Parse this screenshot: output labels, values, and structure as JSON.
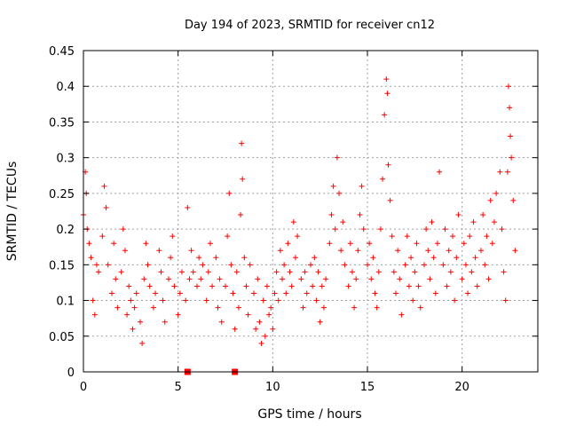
{
  "chart_data": {
    "type": "scatter",
    "title": "Day 194 of 2023, SRMTID for receiver cn12",
    "xlabel": "GPS time / hours",
    "ylabel": "SRMTID / TECUs",
    "xlim": [
      0,
      24
    ],
    "ylim": [
      0,
      0.45
    ],
    "xticks": [
      0,
      5,
      10,
      15,
      20
    ],
    "xtick_labels": [
      "0",
      "5",
      "10",
      "15",
      "20"
    ],
    "yticks": [
      0,
      0.05,
      0.1,
      0.15,
      0.2,
      0.25,
      0.3,
      0.35,
      0.4,
      0.45
    ],
    "ytick_labels": [
      "0",
      "0.05",
      "0.1",
      "0.15",
      "0.2",
      "0.25",
      "0.3",
      "0.35",
      "0.4",
      "0.45"
    ],
    "grid": true,
    "marker": "+",
    "color": "#ff0000",
    "series": [
      {
        "name": "SRMTID",
        "points": [
          [
            0.0,
            0.22
          ],
          [
            0.1,
            0.28
          ],
          [
            0.15,
            0.25
          ],
          [
            0.2,
            0.2
          ],
          [
            0.3,
            0.18
          ],
          [
            0.4,
            0.16
          ],
          [
            0.5,
            0.1
          ],
          [
            0.6,
            0.08
          ],
          [
            0.7,
            0.15
          ],
          [
            0.8,
            0.14
          ],
          [
            1.0,
            0.19
          ],
          [
            1.1,
            0.26
          ],
          [
            1.2,
            0.23
          ],
          [
            1.3,
            0.15
          ],
          [
            1.5,
            0.11
          ],
          [
            1.6,
            0.18
          ],
          [
            1.7,
            0.13
          ],
          [
            1.8,
            0.09
          ],
          [
            2.0,
            0.14
          ],
          [
            2.1,
            0.2
          ],
          [
            2.2,
            0.17
          ],
          [
            2.3,
            0.08
          ],
          [
            2.4,
            0.12
          ],
          [
            2.5,
            0.1
          ],
          [
            2.6,
            0.06
          ],
          [
            2.7,
            0.09
          ],
          [
            2.8,
            0.11
          ],
          [
            3.0,
            0.07
          ],
          [
            3.1,
            0.04
          ],
          [
            3.2,
            0.13
          ],
          [
            3.3,
            0.18
          ],
          [
            3.4,
            0.15
          ],
          [
            3.5,
            0.12
          ],
          [
            3.7,
            0.09
          ],
          [
            3.8,
            0.11
          ],
          [
            4.0,
            0.17
          ],
          [
            4.1,
            0.14
          ],
          [
            4.2,
            0.1
          ],
          [
            4.3,
            0.07
          ],
          [
            4.5,
            0.13
          ],
          [
            4.6,
            0.16
          ],
          [
            4.7,
            0.19
          ],
          [
            4.8,
            0.12
          ],
          [
            5.0,
            0.08
          ],
          [
            5.1,
            0.11
          ],
          [
            5.2,
            0.14
          ],
          [
            5.4,
            0.1
          ],
          [
            5.5,
            0.23
          ],
          [
            5.6,
            0.13
          ],
          [
            5.7,
            0.17
          ],
          [
            5.8,
            0.14
          ],
          [
            6.0,
            0.12
          ],
          [
            6.1,
            0.16
          ],
          [
            6.2,
            0.13
          ],
          [
            6.3,
            0.15
          ],
          [
            6.5,
            0.1
          ],
          [
            6.6,
            0.14
          ],
          [
            6.7,
            0.18
          ],
          [
            6.8,
            0.12
          ],
          [
            7.0,
            0.16
          ],
          [
            7.1,
            0.09
          ],
          [
            7.2,
            0.13
          ],
          [
            7.3,
            0.07
          ],
          [
            7.5,
            0.12
          ],
          [
            7.6,
            0.19
          ],
          [
            7.7,
            0.25
          ],
          [
            7.8,
            0.15
          ],
          [
            7.9,
            0.11
          ],
          [
            8.0,
            0.06
          ],
          [
            8.1,
            0.14
          ],
          [
            8.2,
            0.09
          ],
          [
            8.3,
            0.22
          ],
          [
            8.35,
            0.32
          ],
          [
            8.4,
            0.27
          ],
          [
            8.5,
            0.16
          ],
          [
            8.6,
            0.12
          ],
          [
            8.7,
            0.08
          ],
          [
            8.8,
            0.15
          ],
          [
            9.0,
            0.11
          ],
          [
            9.1,
            0.06
          ],
          [
            9.2,
            0.13
          ],
          [
            9.3,
            0.07
          ],
          [
            9.4,
            0.04
          ],
          [
            9.5,
            0.1
          ],
          [
            9.6,
            0.05
          ],
          [
            9.7,
            0.12
          ],
          [
            9.8,
            0.08
          ],
          [
            9.9,
            0.09
          ],
          [
            10.0,
            0.06
          ],
          [
            10.1,
            0.11
          ],
          [
            10.2,
            0.14
          ],
          [
            10.3,
            0.1
          ],
          [
            10.4,
            0.17
          ],
          [
            10.5,
            0.13
          ],
          [
            10.6,
            0.15
          ],
          [
            10.7,
            0.11
          ],
          [
            10.8,
            0.18
          ],
          [
            10.9,
            0.14
          ],
          [
            11.0,
            0.12
          ],
          [
            11.1,
            0.21
          ],
          [
            11.2,
            0.16
          ],
          [
            11.3,
            0.19
          ],
          [
            11.5,
            0.13
          ],
          [
            11.6,
            0.09
          ],
          [
            11.7,
            0.14
          ],
          [
            11.8,
            0.11
          ],
          [
            12.0,
            0.15
          ],
          [
            12.1,
            0.12
          ],
          [
            12.2,
            0.16
          ],
          [
            12.3,
            0.1
          ],
          [
            12.4,
            0.14
          ],
          [
            12.5,
            0.07
          ],
          [
            12.6,
            0.12
          ],
          [
            12.7,
            0.09
          ],
          [
            12.8,
            0.13
          ],
          [
            13.0,
            0.18
          ],
          [
            13.1,
            0.22
          ],
          [
            13.2,
            0.26
          ],
          [
            13.3,
            0.2
          ],
          [
            13.4,
            0.3
          ],
          [
            13.5,
            0.25
          ],
          [
            13.6,
            0.17
          ],
          [
            13.7,
            0.21
          ],
          [
            13.8,
            0.15
          ],
          [
            14.0,
            0.12
          ],
          [
            14.1,
            0.18
          ],
          [
            14.2,
            0.14
          ],
          [
            14.3,
            0.09
          ],
          [
            14.4,
            0.13
          ],
          [
            14.5,
            0.17
          ],
          [
            14.6,
            0.22
          ],
          [
            14.7,
            0.26
          ],
          [
            14.8,
            0.2
          ],
          [
            15.0,
            0.15
          ],
          [
            15.1,
            0.18
          ],
          [
            15.2,
            0.13
          ],
          [
            15.3,
            0.16
          ],
          [
            15.4,
            0.11
          ],
          [
            15.5,
            0.09
          ],
          [
            15.6,
            0.14
          ],
          [
            15.7,
            0.2
          ],
          [
            15.8,
            0.27
          ],
          [
            15.9,
            0.36
          ],
          [
            16.0,
            0.41
          ],
          [
            16.05,
            0.39
          ],
          [
            16.1,
            0.29
          ],
          [
            16.2,
            0.24
          ],
          [
            16.3,
            0.19
          ],
          [
            16.4,
            0.14
          ],
          [
            16.5,
            0.11
          ],
          [
            16.6,
            0.17
          ],
          [
            16.7,
            0.13
          ],
          [
            16.8,
            0.08
          ],
          [
            17.0,
            0.15
          ],
          [
            17.1,
            0.19
          ],
          [
            17.2,
            0.12
          ],
          [
            17.3,
            0.16
          ],
          [
            17.4,
            0.1
          ],
          [
            17.5,
            0.14
          ],
          [
            17.6,
            0.18
          ],
          [
            17.7,
            0.12
          ],
          [
            17.8,
            0.09
          ],
          [
            18.0,
            0.15
          ],
          [
            18.1,
            0.2
          ],
          [
            18.2,
            0.17
          ],
          [
            18.3,
            0.13
          ],
          [
            18.4,
            0.21
          ],
          [
            18.5,
            0.16
          ],
          [
            18.6,
            0.11
          ],
          [
            18.7,
            0.18
          ],
          [
            18.8,
            0.28
          ],
          [
            19.0,
            0.15
          ],
          [
            19.1,
            0.2
          ],
          [
            19.2,
            0.12
          ],
          [
            19.3,
            0.17
          ],
          [
            19.4,
            0.14
          ],
          [
            19.5,
            0.19
          ],
          [
            19.6,
            0.1
          ],
          [
            19.7,
            0.16
          ],
          [
            19.8,
            0.22
          ],
          [
            20.0,
            0.13
          ],
          [
            20.1,
            0.18
          ],
          [
            20.2,
            0.15
          ],
          [
            20.3,
            0.11
          ],
          [
            20.4,
            0.19
          ],
          [
            20.5,
            0.14
          ],
          [
            20.6,
            0.21
          ],
          [
            20.7,
            0.16
          ],
          [
            20.8,
            0.12
          ],
          [
            21.0,
            0.17
          ],
          [
            21.1,
            0.22
          ],
          [
            21.2,
            0.15
          ],
          [
            21.3,
            0.19
          ],
          [
            21.4,
            0.13
          ],
          [
            21.5,
            0.24
          ],
          [
            21.6,
            0.18
          ],
          [
            21.7,
            0.21
          ],
          [
            21.8,
            0.25
          ],
          [
            22.0,
            0.28
          ],
          [
            22.1,
            0.2
          ],
          [
            22.2,
            0.14
          ],
          [
            22.3,
            0.1
          ],
          [
            22.4,
            0.28
          ],
          [
            22.45,
            0.4
          ],
          [
            22.5,
            0.37
          ],
          [
            22.55,
            0.33
          ],
          [
            22.6,
            0.3
          ],
          [
            22.7,
            0.24
          ],
          [
            22.8,
            0.17
          ]
        ]
      }
    ],
    "zero_markers": [
      [
        5.5,
        0.0
      ],
      [
        8.0,
        0.0
      ]
    ]
  }
}
